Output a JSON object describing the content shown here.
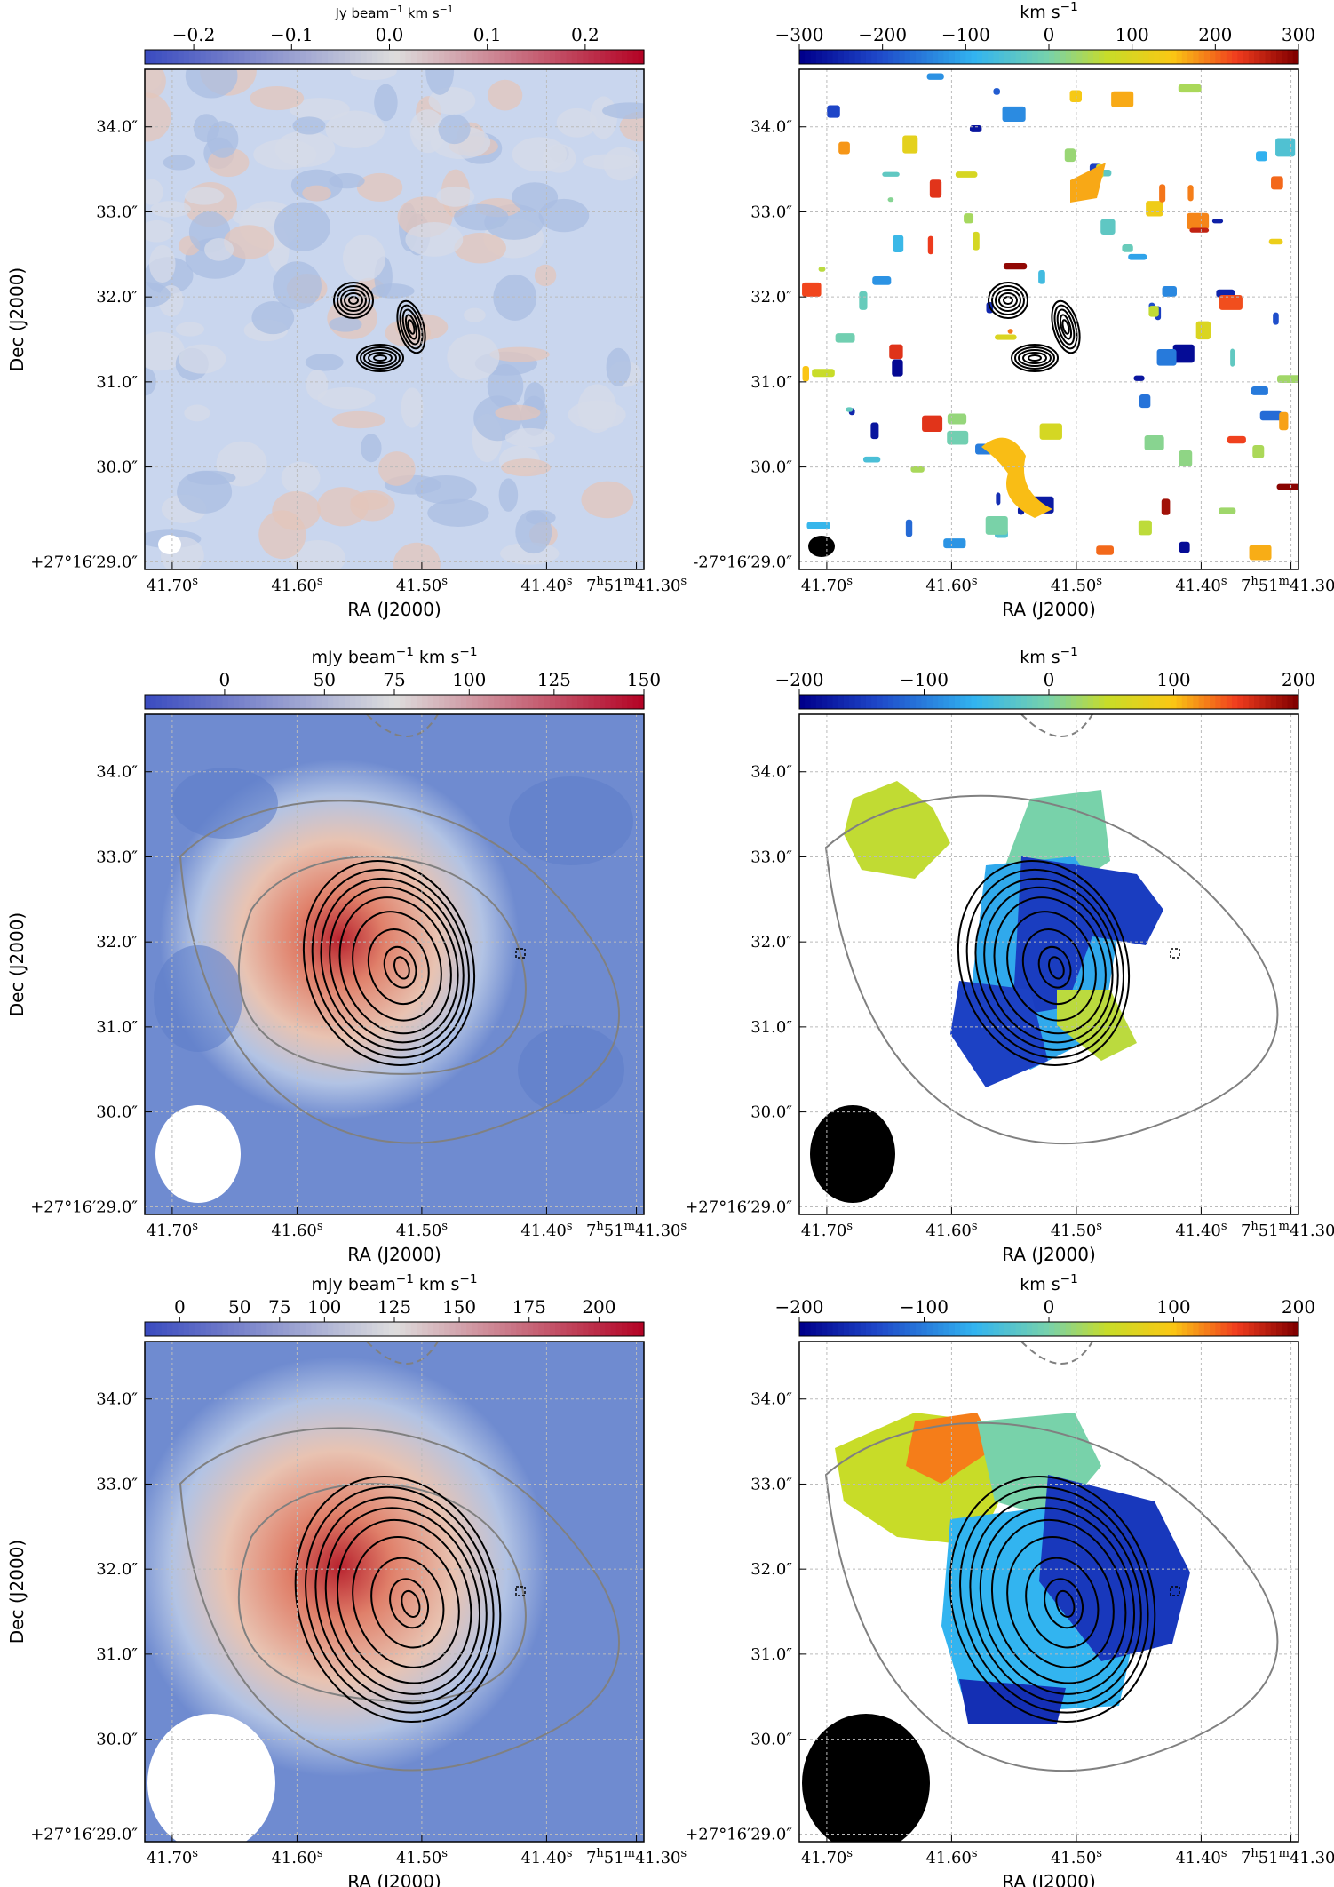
{
  "figure": {
    "axis_labels": {
      "ra": "RA (J2000)",
      "dec": "Dec (J2000)"
    },
    "ra_ticks": [
      "41.70s",
      "41.60s",
      "41.50s",
      "41.40s",
      "7h51m41.30s"
    ],
    "dec_ticks": [
      "34.0″",
      "33.0″",
      "32.0″",
      "31.0″",
      "30.0″"
    ],
    "dec_origin_plus": "+27°16′29.0″",
    "dec_origin_minus": "-27°16′29.0″"
  },
  "chart_data": [
    {
      "type": "heatmap",
      "panel": "row1-left",
      "colorbar_label": "Jy beam⁻¹ km s⁻¹",
      "colorbar_ticks": [
        -0.2,
        -0.1,
        0.0,
        0.1,
        0.2
      ],
      "colorbar_tick_labels": [
        "−0.2",
        "−0.1",
        "0.0",
        "0.1",
        "0.2"
      ],
      "colorbar_range": [
        -0.25,
        0.26
      ],
      "colormap": "coolwarm",
      "beam_color": "white",
      "dec_origin": "plus",
      "features": [
        "compact black contours near 41.50s, 32.0″"
      ]
    },
    {
      "type": "heatmap",
      "panel": "row1-right",
      "colorbar_label": "km s⁻¹",
      "colorbar_ticks": [
        -300,
        -200,
        -100,
        0,
        100,
        200,
        300
      ],
      "colorbar_tick_labels": [
        "−300",
        "−200",
        "−100",
        "0",
        "100",
        "200",
        "300"
      ],
      "colorbar_range": [
        -300,
        300
      ],
      "colormap": "jet",
      "beam_color": "black",
      "dec_origin": "minus",
      "features": [
        "scattered noise velocity patches",
        "compact black contours"
      ]
    },
    {
      "type": "heatmap",
      "panel": "row2-left",
      "colorbar_label": "mJy beam⁻¹ km s⁻¹",
      "colorbar_ticks": [
        0,
        50,
        75,
        100,
        125,
        150
      ],
      "colorbar_tick_labels": [
        "0",
        "50",
        "75",
        "100",
        "125",
        "150"
      ],
      "colorbar_range": [
        -15,
        150
      ],
      "colormap": "coolwarm",
      "beam_color": "white",
      "dec_origin": "plus",
      "features": [
        "peak near 41.48s, 31.8″",
        "black and grey contours"
      ]
    },
    {
      "type": "heatmap",
      "panel": "row2-right",
      "colorbar_label": "km s⁻¹",
      "colorbar_ticks": [
        -200,
        -100,
        0,
        100,
        200
      ],
      "colorbar_tick_labels": [
        "−200",
        "−100",
        "0",
        "100",
        "200"
      ],
      "colorbar_range": [
        -200,
        200
      ],
      "colormap": "jet",
      "beam_color": "black",
      "dec_origin": "plus",
      "features": [
        "velocity field with blue east side and yellow-green north-west"
      ]
    },
    {
      "type": "heatmap",
      "panel": "row3-left",
      "colorbar_label": "mJy beam⁻¹ km s⁻¹",
      "colorbar_ticks": [
        0,
        50,
        75,
        100,
        125,
        150,
        175,
        200
      ],
      "colorbar_tick_labels": [
        "0",
        "50",
        "75",
        "100",
        "125",
        "150",
        "175",
        "200"
      ],
      "colorbar_range": [
        -15,
        225
      ],
      "colormap": "coolwarm",
      "beam_color": "white",
      "dec_origin": "plus",
      "features": [
        "peak near 41.49s, 31.7″",
        "black and grey contours"
      ]
    },
    {
      "type": "heatmap",
      "panel": "row3-right",
      "colorbar_label": "km s⁻¹",
      "colorbar_ticks": [
        -200,
        -100,
        0,
        100,
        200
      ],
      "colorbar_tick_labels": [
        "−200",
        "−100",
        "0",
        "100",
        "200"
      ],
      "colorbar_range": [
        -200,
        200
      ],
      "colormap": "jet",
      "beam_color": "black",
      "dec_origin": "plus",
      "features": [
        "velocity gradient red/yellow north-west to blue south-east"
      ]
    }
  ]
}
